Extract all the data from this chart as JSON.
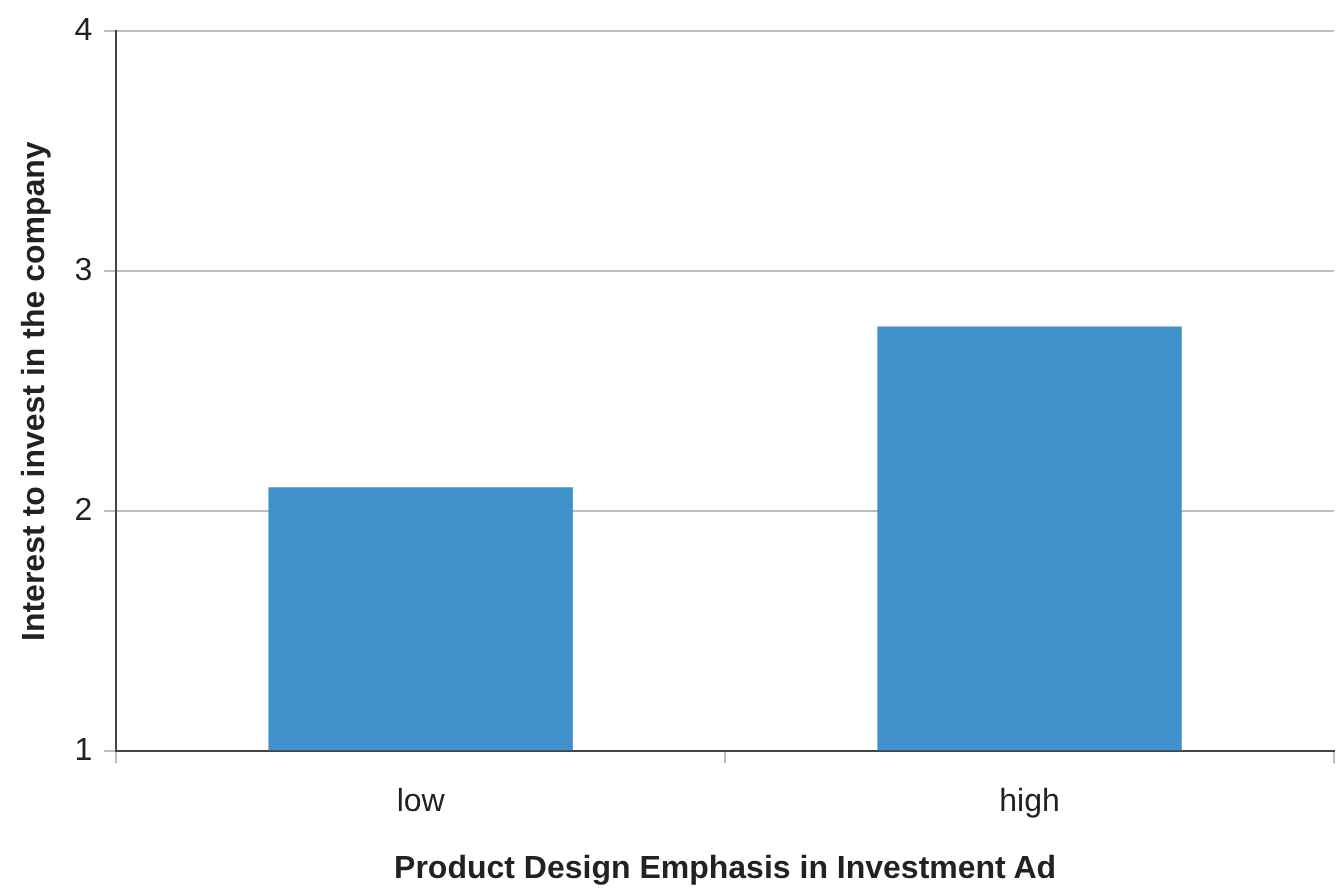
{
  "chart_data": {
    "type": "bar",
    "xlabel": "Product Design Emphasis in Investment Ad",
    "ylabel": "Interest to invest in the company",
    "categories": [
      "low",
      "high"
    ],
    "values": [
      2.1,
      2.77
    ],
    "color": "#4191cd",
    "ylim": [
      1,
      4
    ],
    "yticks": [
      1,
      2,
      3,
      4
    ],
    "grid": "y",
    "legend": false
  }
}
